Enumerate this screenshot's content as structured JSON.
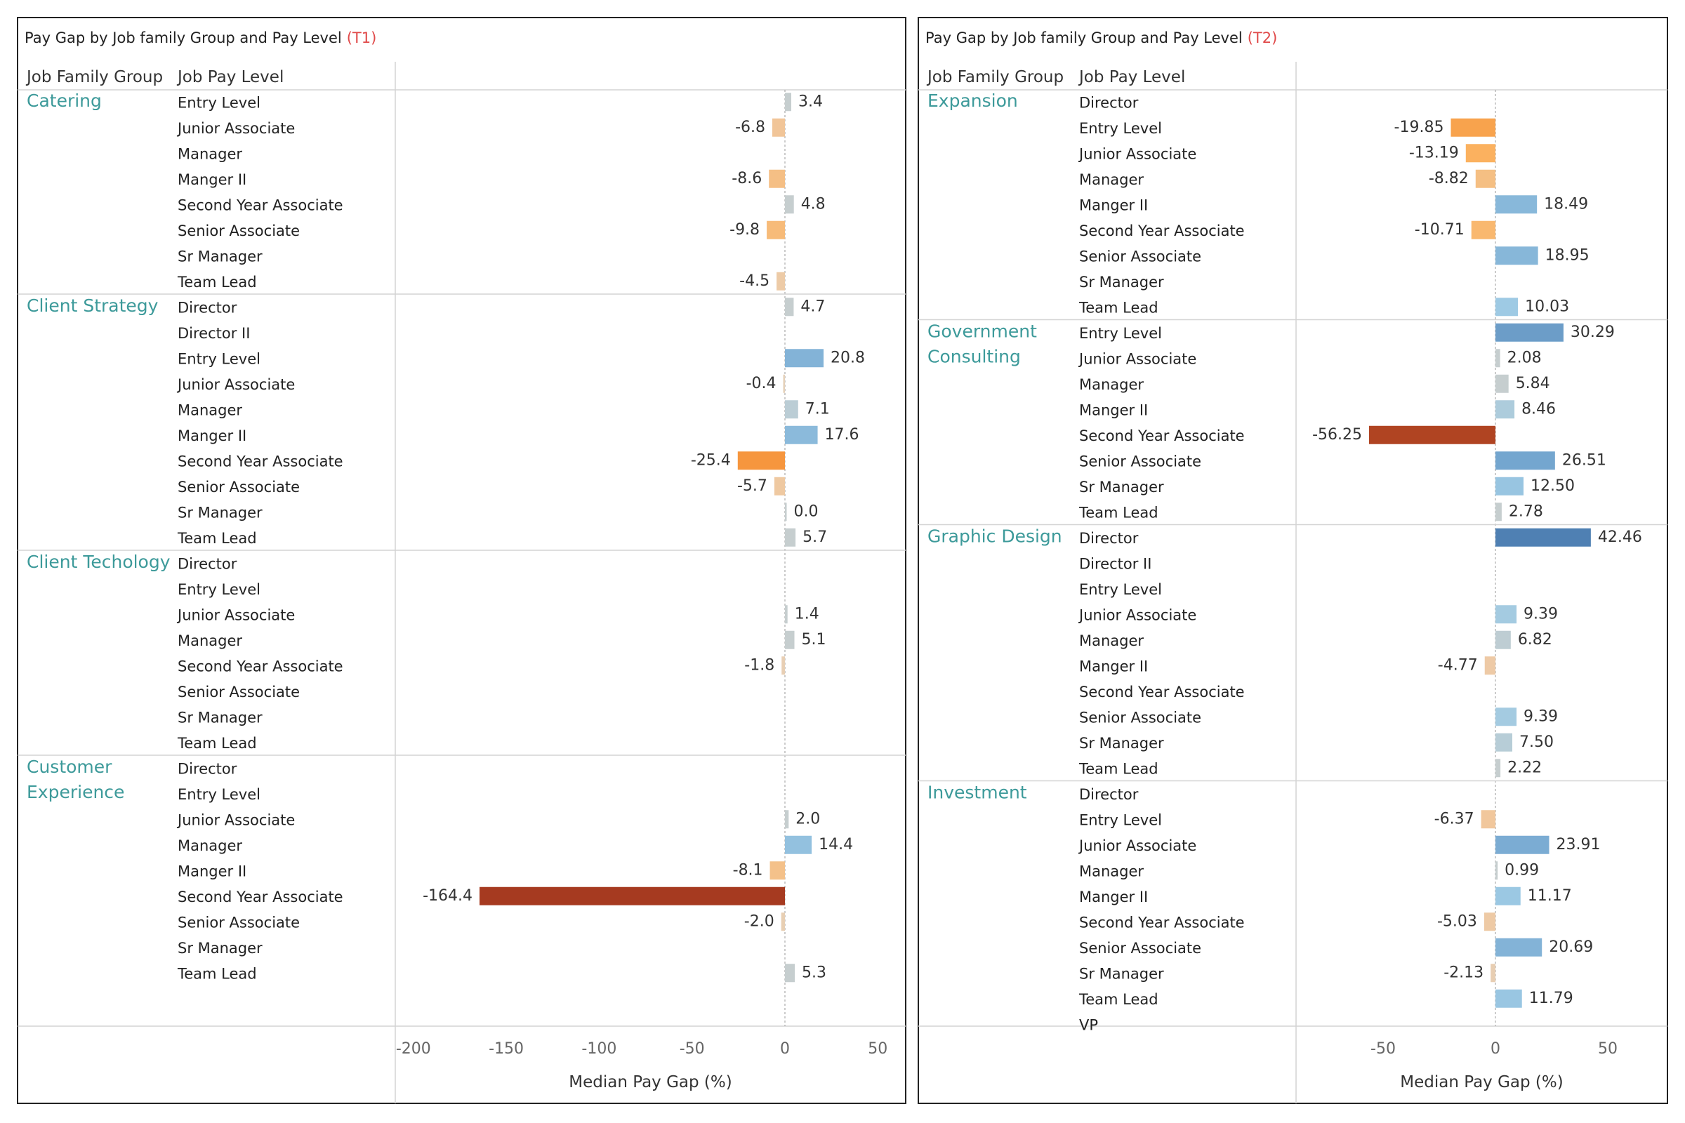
{
  "chart_data": [
    {
      "type": "bar",
      "title": "Pay Gap by Job family Group and Pay Level",
      "title_tag": "(T1)",
      "header_group": "Job Family Group",
      "header_level": "Job Pay Level",
      "xlabel": "Median Pay Gap (%)",
      "xlim": [
        -200,
        50
      ],
      "xticks": [
        -200,
        -150,
        -100,
        -50,
        0,
        50
      ],
      "decimals": 1,
      "grid": false,
      "legend": "none",
      "groups": [
        {
          "name": [
            "Catering"
          ],
          "rows": [
            {
              "level": "Entry Level",
              "value": 3.4
            },
            {
              "level": "Junior Associate",
              "value": -6.8
            },
            {
              "level": "Manager",
              "value": null
            },
            {
              "level": "Manger II",
              "value": -8.6
            },
            {
              "level": "Second Year Associate",
              "value": 4.8
            },
            {
              "level": "Senior Associate",
              "value": -9.8
            },
            {
              "level": "Sr Manager",
              "value": null
            },
            {
              "level": "Team Lead",
              "value": -4.5
            }
          ]
        },
        {
          "name": [
            "Client Strategy"
          ],
          "rows": [
            {
              "level": "Director",
              "value": 4.7
            },
            {
              "level": "Director II",
              "value": null
            },
            {
              "level": "Entry Level",
              "value": 20.8
            },
            {
              "level": "Junior Associate",
              "value": -0.4
            },
            {
              "level": "Manager",
              "value": 7.1
            },
            {
              "level": "Manger II",
              "value": 17.6
            },
            {
              "level": "Second Year Associate",
              "value": -25.4
            },
            {
              "level": "Senior Associate",
              "value": -5.7
            },
            {
              "level": "Sr Manager",
              "value": 0.0
            },
            {
              "level": "Team Lead",
              "value": 5.7
            }
          ]
        },
        {
          "name": [
            "Client Techology"
          ],
          "rows": [
            {
              "level": "Director",
              "value": null
            },
            {
              "level": "Entry Level",
              "value": null
            },
            {
              "level": "Junior Associate",
              "value": 1.4
            },
            {
              "level": "Manager",
              "value": 5.1
            },
            {
              "level": "Second Year Associate",
              "value": -1.8
            },
            {
              "level": "Senior Associate",
              "value": null
            },
            {
              "level": "Sr Manager",
              "value": null
            },
            {
              "level": "Team Lead",
              "value": null
            }
          ]
        },
        {
          "name": [
            "Customer",
            "Experience"
          ],
          "rows": [
            {
              "level": "Director",
              "value": null
            },
            {
              "level": "Entry Level",
              "value": null
            },
            {
              "level": "Junior Associate",
              "value": 2.0
            },
            {
              "level": "Manager",
              "value": 14.4
            },
            {
              "level": "Manger II",
              "value": -8.1
            },
            {
              "level": "Second Year Associate",
              "value": -164.4
            },
            {
              "level": "Senior Associate",
              "value": -2.0
            },
            {
              "level": "Sr Manager",
              "value": null
            },
            {
              "level": "Team Lead",
              "value": 5.3
            }
          ]
        }
      ]
    },
    {
      "type": "bar",
      "title": "Pay Gap by Job family Group and Pay Level",
      "title_tag": "(T2)",
      "header_group": "Job Family Group",
      "header_level": "Job Pay Level",
      "xlabel": "Median Pay Gap (%)",
      "xlim": [
        -70,
        70
      ],
      "xticks": [
        -50,
        0,
        50
      ],
      "decimals": 2,
      "grid": false,
      "legend": "none",
      "groups": [
        {
          "name": [
            "Expansion"
          ],
          "rows": [
            {
              "level": "Director",
              "value": null
            },
            {
              "level": "Entry Level",
              "value": -19.85
            },
            {
              "level": "Junior Associate",
              "value": -13.19
            },
            {
              "level": "Manager",
              "value": -8.82
            },
            {
              "level": "Manger II",
              "value": 18.49
            },
            {
              "level": "Second Year Associate",
              "value": -10.71
            },
            {
              "level": "Senior Associate",
              "value": 18.95
            },
            {
              "level": "Sr Manager",
              "value": null
            },
            {
              "level": "Team Lead",
              "value": 10.03
            }
          ]
        },
        {
          "name": [
            "Government",
            "Consulting"
          ],
          "rows": [
            {
              "level": "Entry Level",
              "value": 30.29
            },
            {
              "level": "Junior Associate",
              "value": 2.08
            },
            {
              "level": "Manager",
              "value": 5.84
            },
            {
              "level": "Manger II",
              "value": 8.46
            },
            {
              "level": "Second Year Associate",
              "value": -56.25
            },
            {
              "level": "Senior Associate",
              "value": 26.51
            },
            {
              "level": "Sr Manager",
              "value": 12.5
            },
            {
              "level": "Team Lead",
              "value": 2.78
            }
          ]
        },
        {
          "name": [
            "Graphic Design"
          ],
          "rows": [
            {
              "level": "Director",
              "value": 42.46
            },
            {
              "level": "Director II",
              "value": null
            },
            {
              "level": "Entry Level",
              "value": null
            },
            {
              "level": "Junior Associate",
              "value": 9.39
            },
            {
              "level": "Manager",
              "value": 6.82
            },
            {
              "level": "Manger II",
              "value": -4.77
            },
            {
              "level": "Second Year Associate",
              "value": null
            },
            {
              "level": "Senior Associate",
              "value": 9.39
            },
            {
              "level": "Sr Manager",
              "value": 7.5
            },
            {
              "level": "Team Lead",
              "value": 2.22
            }
          ]
        },
        {
          "name": [
            "Investment"
          ],
          "rows": [
            {
              "level": "Director",
              "value": null
            },
            {
              "level": "Entry Level",
              "value": -6.37
            },
            {
              "level": "Junior Associate",
              "value": 23.91
            },
            {
              "level": "Manager",
              "value": 0.99
            },
            {
              "level": "Manger II",
              "value": 11.17
            },
            {
              "level": "Second Year Associate",
              "value": -5.03
            },
            {
              "level": "Senior Associate",
              "value": 20.69
            },
            {
              "level": "Sr Manager",
              "value": -2.13
            },
            {
              "level": "Team Lead",
              "value": 11.79
            },
            {
              "level": "VP",
              "value": null
            }
          ]
        }
      ]
    }
  ]
}
